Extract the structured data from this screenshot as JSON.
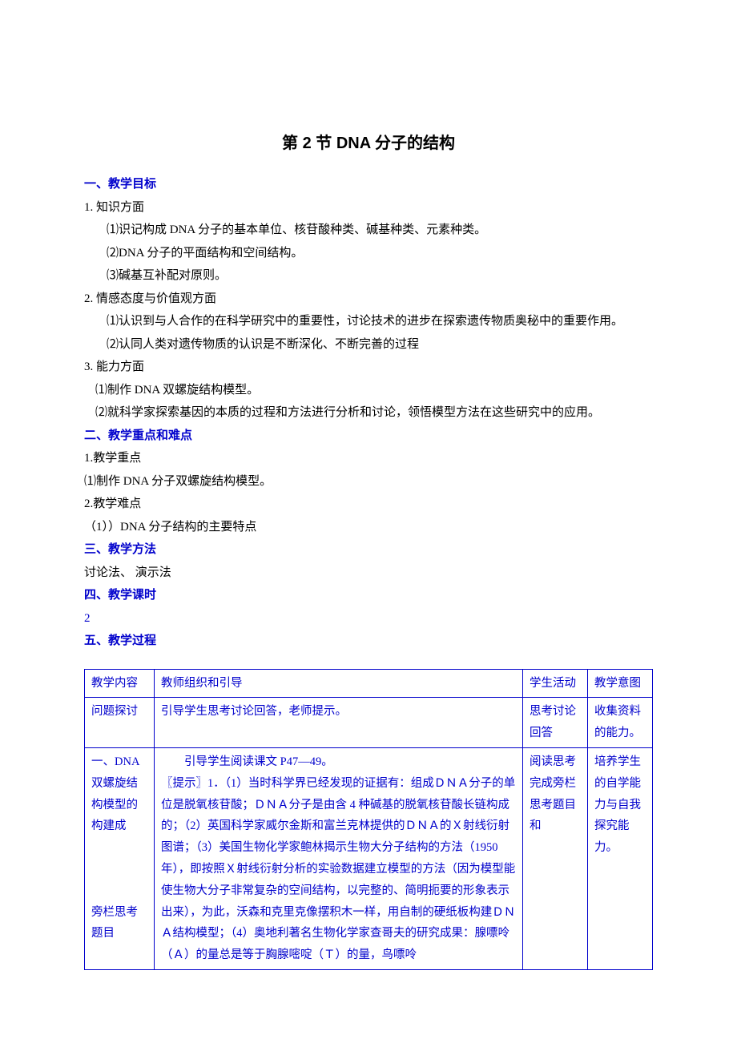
{
  "title": "第 2 节 DNA 分子的结构",
  "sections": {
    "s1": {
      "header": "一、教学目标",
      "p1_label": "1. 知识方面",
      "p1_items": [
        "⑴识记构成 DNA 分子的基本单位、核苷酸种类、碱基种类、元素种类。",
        "⑵DNA 分子的平面结构和空间结构。",
        "⑶碱基互补配对原则。"
      ],
      "p2_label": "2. 情感态度与价值观方面",
      "p2_items": [
        "⑴认识到与人合作的在科学研究中的重要性，讨论技术的进步在探索遗传物质奥秘中的重要作用。",
        "⑵认同人类对遗传物质的认识是不断深化、不断完善的过程"
      ],
      "p3_label": "3. 能力方面",
      "p3_items": [
        "⑴制作 DNA 双螺旋结构模型。",
        "⑵就科学家探索基因的本质的过程和方法进行分析和讨论，领悟模型方法在这些研究中的应用。"
      ]
    },
    "s2": {
      "header": "二、教学重点和难点",
      "lines": [
        "1.教学重点",
        "⑴制作 DNA 分子双螺旋结构模型。",
        "2.教学难点",
        "（1））DNA 分子结构的主要特点"
      ]
    },
    "s3": {
      "header": "三、教学方法",
      "body": "讨论法、 演示法"
    },
    "s4": {
      "header": "四、教学课时",
      "body": "2"
    },
    "s5": {
      "header": "五、教学过程"
    }
  },
  "table": {
    "header": {
      "c1": "教学内容",
      "c2": "教师组织和引导",
      "c3": "学生活动",
      "c4": "教学意图"
    },
    "row1": {
      "c1": "问题探讨",
      "c2": "引导学生思考讨论回答，老师提示。",
      "c3": "思考讨论回答",
      "c4": "收集资料的能力。"
    },
    "row2": {
      "c1": "一、DNA 双螺旋结构模型的构建成\n\n\n\n旁栏思考题目",
      "c2_lead": "引导学生阅读课文 P47—49。",
      "c2_body": "〖提示〗1．（1）当时科学界已经发现的证据有：组成ＤＮＡ分子的单位是脱氧核苷酸；ＤＮＡ分子是由含 4 种碱基的脱氧核苷酸长链构成的；（2）英国科学家威尔金斯和富兰克林提供的ＤＮＡ的Ｘ射线衍射图谱；（3）美国生物化学家鲍林揭示生物大分子结构的方法（1950 年），即按照Ｘ射线衍射分析的实验数据建立模型的方法（因为模型能使生物大分子非常复杂的空间结构，以完整的、简明扼要的形象表示出来），为此，沃森和克里克像摆积木一样，用自制的硬纸板构建ＤＮＡ结构模型；（4）奥地利著名生物化学家查哥夫的研究成果：腺嘌呤（Ａ）的量总是等于胸腺嘧啶（Ｔ）的量，鸟嘌呤",
      "c3": "阅读思考完成旁栏思考题目和",
      "c4": "培养学生的自学能力与自我探究能力。"
    }
  },
  "colors": {
    "blue": "#0000cc",
    "black": "#000000"
  },
  "fonts": {
    "title_size": 20,
    "body_size": 15,
    "table_size": 14.5
  }
}
